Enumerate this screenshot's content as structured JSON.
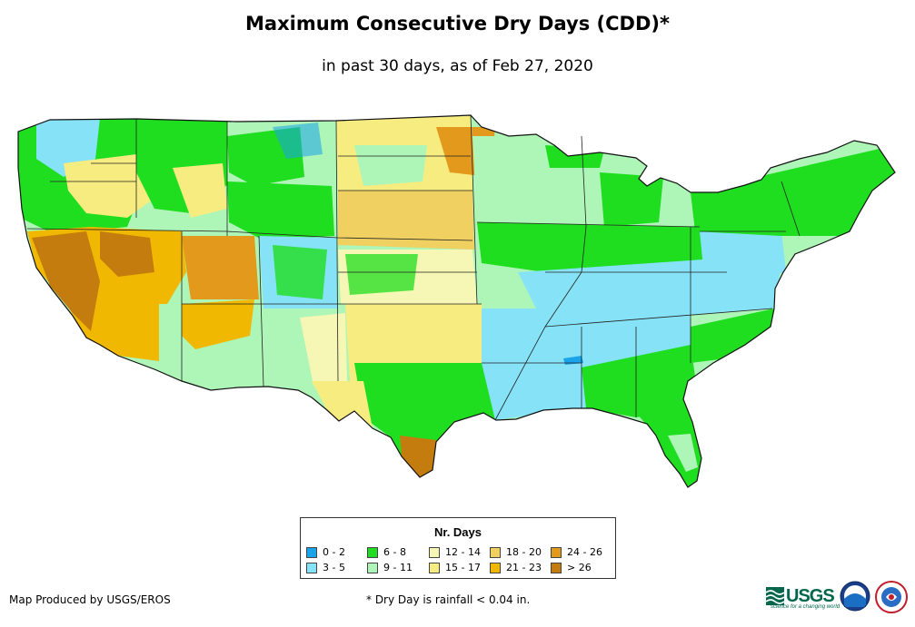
{
  "header": {
    "title": "Maximum Consecutive Dry Days (CDD)*",
    "subtitle": "in past 30 days, as of Feb 27, 2020"
  },
  "map": {
    "region": "Contiguous United States",
    "palette": {
      "c0": "#1aa3e8",
      "c1": "#86e3f7",
      "c2": "#1fdd1f",
      "c3": "#aef5b8",
      "c4": "#f7f7b5",
      "c5": "#f7ec80",
      "c6": "#f0d060",
      "c7": "#f0b800",
      "c8": "#e39a1c",
      "c9": "#c57c0e"
    }
  },
  "legend": {
    "title": "Nr. Days",
    "items": [
      {
        "label": "0 - 2",
        "color": "#1aa3e8"
      },
      {
        "label": "3 - 5",
        "color": "#86e3f7"
      },
      {
        "label": "6 - 8",
        "color": "#1fdd1f"
      },
      {
        "label": "9 - 11",
        "color": "#aef5b8"
      },
      {
        "label": "12 - 14",
        "color": "#f7f7b5"
      },
      {
        "label": "15 - 17",
        "color": "#f7ec80"
      },
      {
        "label": "18 - 20",
        "color": "#f0d060"
      },
      {
        "label": "21 - 23",
        "color": "#f0b800"
      },
      {
        "label": "24 - 26",
        "color": "#e39a1c"
      },
      {
        "label": "> 26",
        "color": "#c57c0e"
      }
    ]
  },
  "footer": {
    "credit": "Map Produced by USGS/EROS",
    "footnote": "* Dry Day is rainfall < 0.04 in.",
    "usgs_logo_text": "USGS",
    "usgs_tagline": "science for a changing world"
  }
}
